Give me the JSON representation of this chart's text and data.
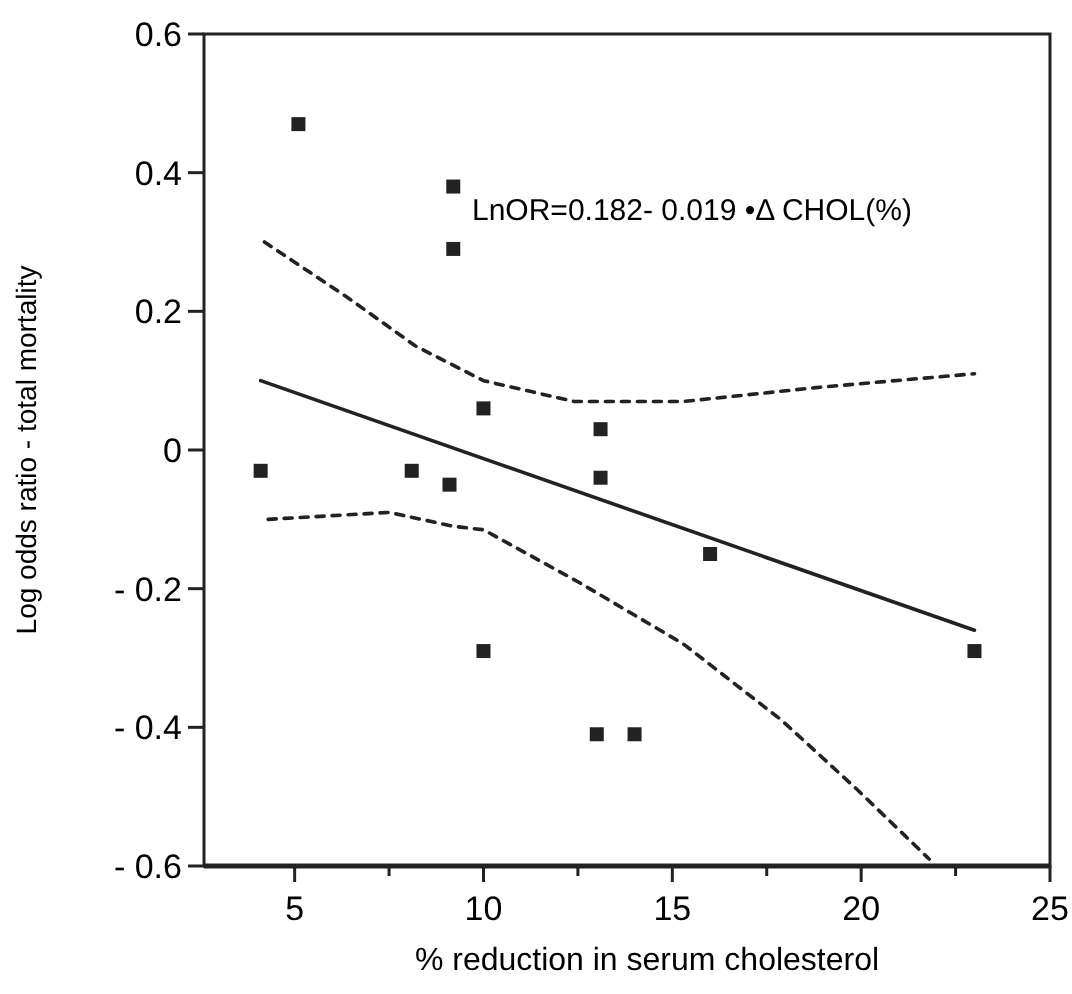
{
  "chart_data": {
    "type": "scatter",
    "xlabel": "% reduction in serum cholesterol",
    "ylabel": "Log odds ratio - total mortality",
    "annotations": [
      "LnOR=0.182- 0.019 •Δ CHOL(%)"
    ],
    "xlim": [
      2.6,
      25
    ],
    "xticks": [
      5,
      {
        "value": 7.5,
        "label": null
      },
      10,
      {
        "value": 12.5,
        "label": null
      },
      15,
      {
        "value": 17.5,
        "label": null
      },
      20,
      {
        "value": 22.5,
        "label": null
      },
      25
    ],
    "ylim": [
      -0.6,
      0.6
    ],
    "yticks": [
      {
        "value": -0.6,
        "label": "- 0.6"
      },
      {
        "value": -0.4,
        "label": "- 0.4"
      },
      {
        "value": -0.2,
        "label": "- 0.2"
      },
      0,
      0.2,
      0.4,
      0.6
    ],
    "grid": false,
    "series": [
      {
        "color": "#222222",
        "marker": "square",
        "x": [
          4.1,
          5.1,
          9.2,
          9.2,
          10.0,
          8.1,
          9.1,
          13.1,
          13.1,
          16.0,
          10.0,
          13.0,
          14.0,
          23.0
        ],
        "values": [
          -0.03,
          0.47,
          0.38,
          0.29,
          0.06,
          -0.03,
          -0.05,
          0.03,
          -0.04,
          -0.15,
          -0.29,
          -0.41,
          -0.41,
          -0.29
        ]
      },
      {
        "type": "line",
        "color": "#222222",
        "line_style": "solid",
        "x": [
          4.1,
          23.0
        ],
        "values": [
          0.1,
          -0.26
        ]
      },
      {
        "type": "line",
        "color": "#222222",
        "line_style": "dashed",
        "x": [
          4.2,
          6.4,
          8.2,
          10.0,
          12.4,
          15.3,
          18.8,
          23.0
        ],
        "values": [
          0.3,
          0.22,
          0.15,
          0.1,
          0.07,
          0.07,
          0.09,
          0.11
        ]
      },
      {
        "type": "line",
        "color": "#222222",
        "line_style": "dashed",
        "x": [
          4.3,
          7.5,
          9.2,
          10.0,
          12.5,
          15.3,
          17.9,
          19.9,
          21.8
        ],
        "values": [
          -0.1,
          -0.09,
          -0.11,
          -0.115,
          -0.19,
          -0.28,
          -0.39,
          -0.49,
          -0.59
        ]
      }
    ]
  }
}
